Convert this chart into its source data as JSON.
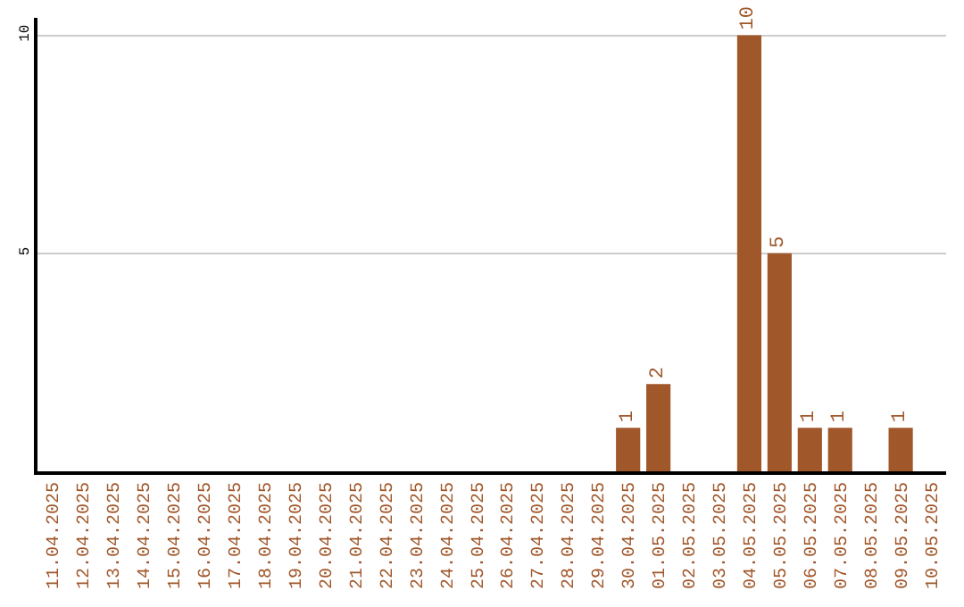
{
  "chart_data": {
    "type": "bar",
    "categories": [
      "11.04.2025",
      "12.04.2025",
      "13.04.2025",
      "14.04.2025",
      "15.04.2025",
      "16.04.2025",
      "17.04.2025",
      "18.04.2025",
      "19.04.2025",
      "20.04.2025",
      "21.04.2025",
      "22.04.2025",
      "23.04.2025",
      "24.04.2025",
      "25.04.2025",
      "26.04.2025",
      "27.04.2025",
      "28.04.2025",
      "29.04.2025",
      "30.04.2025",
      "01.05.2025",
      "02.05.2025",
      "03.05.2025",
      "04.05.2025",
      "05.05.2025",
      "06.05.2025",
      "07.05.2025",
      "08.05.2025",
      "09.05.2025",
      "10.05.2025"
    ],
    "values": [
      0,
      0,
      0,
      0,
      0,
      0,
      0,
      0,
      0,
      0,
      0,
      0,
      0,
      0,
      0,
      0,
      0,
      0,
      0,
      1,
      2,
      0,
      0,
      10,
      5,
      1,
      1,
      0,
      1,
      0
    ],
    "value_labels": [
      null,
      null,
      null,
      null,
      null,
      null,
      null,
      null,
      null,
      null,
      null,
      null,
      null,
      null,
      null,
      null,
      null,
      null,
      null,
      "1",
      "2",
      null,
      null,
      "10",
      "5",
      "1",
      "1",
      null,
      "1",
      null
    ],
    "color": "#a0572a",
    "ylim": [
      0,
      10.4
    ],
    "yticks": [
      5,
      10
    ],
    "grid": "y"
  }
}
